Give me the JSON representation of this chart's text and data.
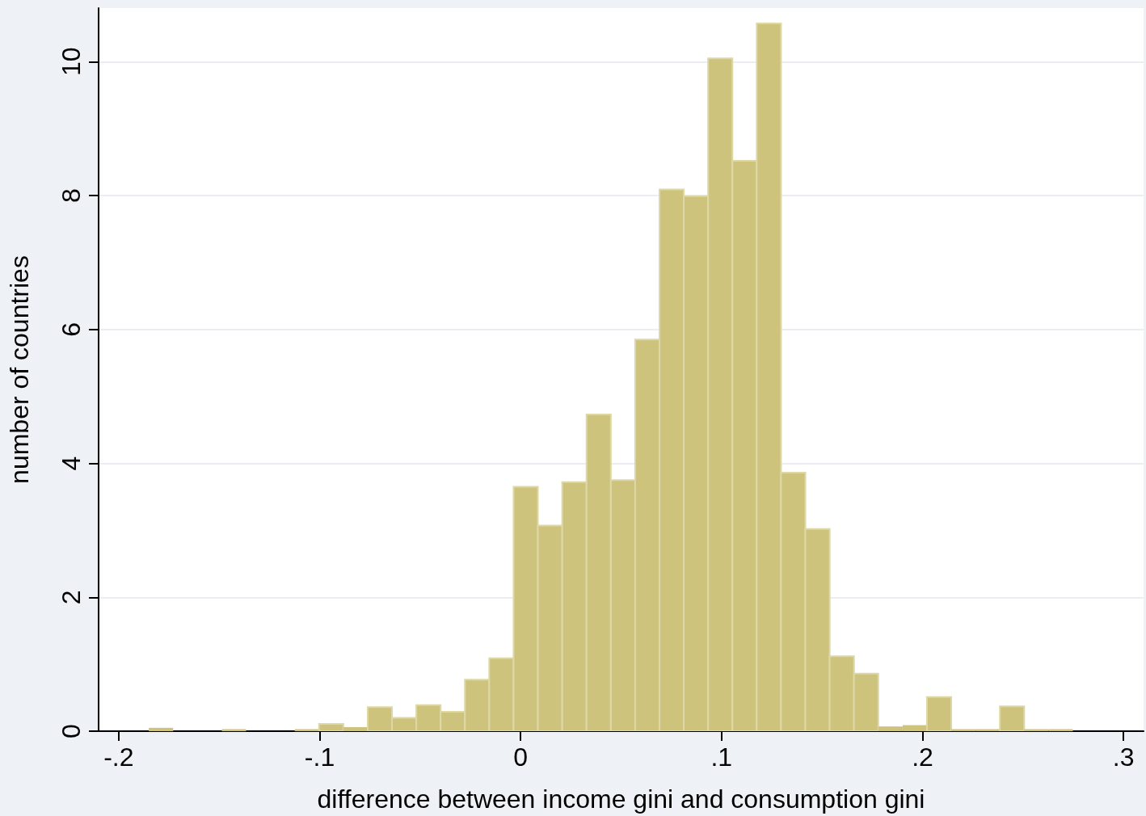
{
  "chart_data": {
    "type": "histogram",
    "xlabel": "difference between income gini and consumption gini",
    "ylabel": "number of countries",
    "color": "#cdc37d",
    "bins": [
      -0.185,
      -0.1729,
      -0.1608,
      -0.1487,
      -0.1366,
      -0.1245,
      -0.1124,
      -0.1003,
      -0.0882,
      -0.0761,
      -0.064,
      -0.0519,
      -0.0398,
      -0.0277,
      -0.0156,
      -0.0035,
      0.0086,
      0.0207,
      0.0328,
      0.0449,
      0.057,
      0.0691,
      0.0812,
      0.0933,
      0.1054,
      0.1175,
      0.1296,
      0.1417,
      0.1538,
      0.1659,
      0.178,
      0.1901,
      0.2022,
      0.2143,
      0.2264,
      0.2385,
      0.2506,
      0.2627,
      0.2748
    ],
    "values": [
      0.05,
      0,
      0,
      0.03,
      0,
      0,
      0.03,
      0.11,
      0.06,
      0.36,
      0.2,
      0.39,
      0.29,
      0.77,
      1.09,
      3.65,
      3.07,
      3.72,
      4.73,
      3.75,
      5.85,
      8.09,
      7.99,
      10.05,
      8.52,
      10.57,
      3.86,
      3.02,
      1.12,
      0.86,
      0.07,
      0.09,
      0.51,
      0.03,
      0.03,
      0.37,
      0.03,
      0.03
    ],
    "xlim": [
      -0.21,
      0.31
    ],
    "xticks": [
      {
        "value": -0.2,
        "label": "-.2"
      },
      {
        "value": -0.1,
        "label": "-.1"
      },
      0,
      {
        "value": 0.1,
        "label": ".1"
      },
      {
        "value": 0.2,
        "label": ".2"
      },
      {
        "value": 0.3,
        "label": ".3"
      }
    ],
    "ylim": [
      0,
      10.8
    ],
    "yticks": [
      0,
      2,
      4,
      6,
      8,
      10
    ],
    "grid": "y"
  }
}
